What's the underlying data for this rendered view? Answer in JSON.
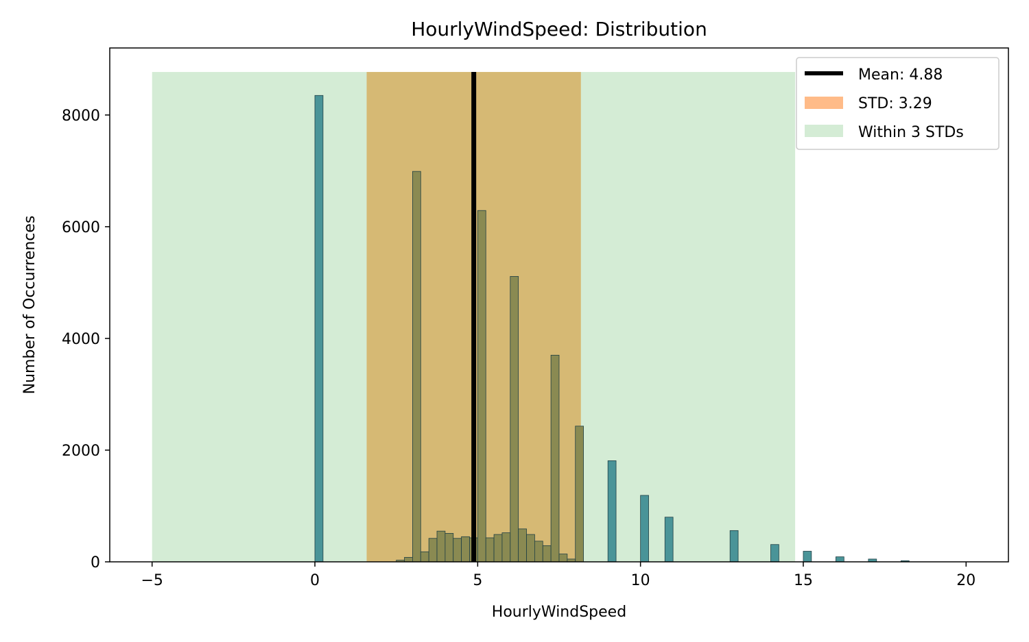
{
  "chart_data": {
    "type": "bar",
    "title": "HourlyWindSpeed: Distribution",
    "xlabel": "HourlyWindSpeed",
    "ylabel": "Number of Occurrences",
    "xlim": [
      -6.3,
      21.3
    ],
    "ylim": [
      0,
      9200
    ],
    "xticks": [
      -5,
      0,
      5,
      10,
      15,
      20
    ],
    "yticks": [
      0,
      2000,
      4000,
      6000,
      8000
    ],
    "grid": false,
    "legend_position": "top-right",
    "bin_width": 0.25,
    "bins": [
      {
        "x": 0.0,
        "count": 8350
      },
      {
        "x": 2.5,
        "count": 30
      },
      {
        "x": 2.75,
        "count": 80
      },
      {
        "x": 3.0,
        "count": 6990
      },
      {
        "x": 3.25,
        "count": 180
      },
      {
        "x": 3.5,
        "count": 420
      },
      {
        "x": 3.75,
        "count": 550
      },
      {
        "x": 4.0,
        "count": 510
      },
      {
        "x": 4.25,
        "count": 420
      },
      {
        "x": 4.5,
        "count": 450
      },
      {
        "x": 4.75,
        "count": 430
      },
      {
        "x": 5.0,
        "count": 6290
      },
      {
        "x": 5.25,
        "count": 430
      },
      {
        "x": 5.5,
        "count": 490
      },
      {
        "x": 5.75,
        "count": 520
      },
      {
        "x": 6.0,
        "count": 5110
      },
      {
        "x": 6.25,
        "count": 590
      },
      {
        "x": 6.5,
        "count": 490
      },
      {
        "x": 6.75,
        "count": 370
      },
      {
        "x": 7.0,
        "count": 290
      },
      {
        "x": 7.25,
        "count": 3700
      },
      {
        "x": 7.5,
        "count": 140
      },
      {
        "x": 7.75,
        "count": 50
      },
      {
        "x": 8.0,
        "count": 2430
      },
      {
        "x": 9.0,
        "count": 1810
      },
      {
        "x": 10.0,
        "count": 1190
      },
      {
        "x": 10.75,
        "count": 800
      },
      {
        "x": 12.75,
        "count": 560
      },
      {
        "x": 14.0,
        "count": 310
      },
      {
        "x": 15.0,
        "count": 190
      },
      {
        "x": 16.0,
        "count": 90
      },
      {
        "x": 17.0,
        "count": 50
      },
      {
        "x": 18.0,
        "count": 20
      }
    ],
    "mean": 4.88,
    "std": 3.29,
    "std_band": [
      1.59,
      8.17
    ],
    "three_std_band": [
      -5.0,
      14.75
    ],
    "band_top": 8770,
    "legend": [
      {
        "label": "Mean: 4.88",
        "kind": "line"
      },
      {
        "label": "STD: 3.29",
        "kind": "patch"
      },
      {
        "label": "Within 3 STDs",
        "kind": "patch"
      }
    ],
    "colors": {
      "bar": "#4a9498",
      "bar_edge": "#1f3f44",
      "mean_line": "#000000",
      "std_band": "#ffbb88",
      "three_std_band": "#d4ecd5",
      "std_overlap": "#d6b974",
      "bar_in_std": "#8a8a52"
    }
  }
}
